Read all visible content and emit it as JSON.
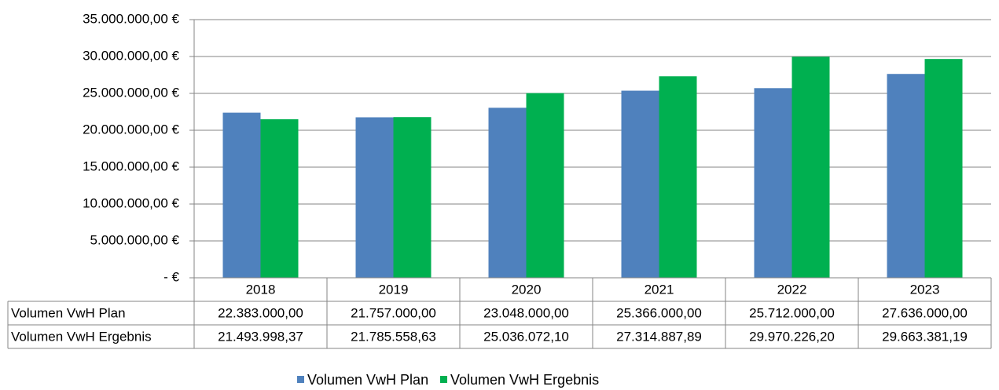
{
  "chart_data": {
    "type": "bar",
    "categories": [
      "2018",
      "2019",
      "2020",
      "2021",
      "2022",
      "2023"
    ],
    "series": [
      {
        "name": "Volumen VwH Plan",
        "color": "#4f81bd",
        "values": [
          22383000,
          21757000,
          23048000,
          25366000,
          25712000,
          27636000
        ],
        "value_labels": [
          "22.383.000,00",
          "21.757.000,00",
          "23.048.000,00",
          "25.366.000,00",
          "25.712.000,00",
          "27.636.000,00"
        ]
      },
      {
        "name": "Volumen VwH Ergebnis",
        "color": "#00b050",
        "values": [
          21493998.37,
          21785558.63,
          25036072.1,
          27314887.89,
          29970226.2,
          29663381.19
        ],
        "value_labels": [
          "21.493.998,37",
          "21.785.558,63",
          "25.036.072,10",
          "27.314.887,89",
          "29.970.226,20",
          "29.663.381,19"
        ]
      }
    ],
    "ylim": [
      0,
      35000000
    ],
    "yticks": [
      {
        "value": 0,
        "label": "-  €"
      },
      {
        "value": 5000000,
        "label": "5.000.000,00 €"
      },
      {
        "value": 10000000,
        "label": "10.000.000,00 €"
      },
      {
        "value": 15000000,
        "label": "15.000.000,00 €"
      },
      {
        "value": 20000000,
        "label": "20.000.000,00 €"
      },
      {
        "value": 25000000,
        "label": "25.000.000,00 €"
      },
      {
        "value": 30000000,
        "label": "30.000.000,00 €"
      },
      {
        "value": 35000000,
        "label": "35.000.000,00 €"
      }
    ],
    "grid": true,
    "legend": "bottom"
  }
}
